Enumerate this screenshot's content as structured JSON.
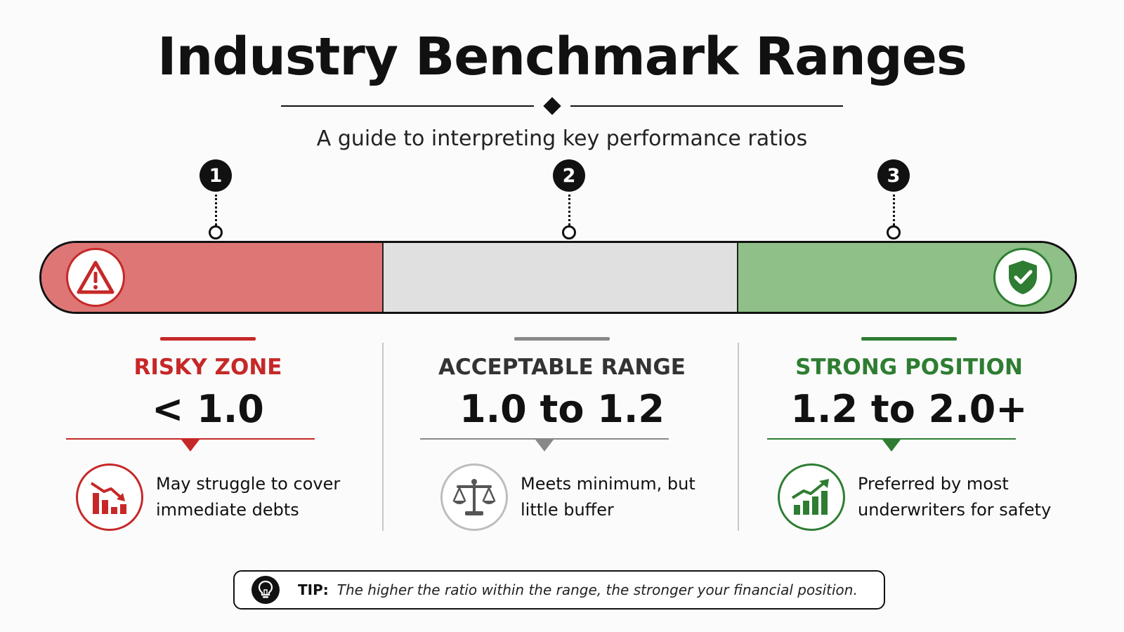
{
  "title": "Industry Benchmark Ranges",
  "subtitle": "A guide to interpreting key performance ratios",
  "markers": [
    "1",
    "2",
    "3"
  ],
  "colors": {
    "risky": "#c62828",
    "risky_fill": "#de7675",
    "acceptable": "#888888",
    "acceptable_fill": "#e0e0e0",
    "strong": "#2e7d32",
    "strong_fill": "#8ec087"
  },
  "bar_icons": [
    "warning-icon",
    "shield-check-icon"
  ],
  "zones": [
    {
      "label": "RISKY ZONE",
      "value": "< 1.0",
      "description": "May struggle to cover immediate debts",
      "icon": "declining-chart-icon"
    },
    {
      "label": "ACCEPTABLE RANGE",
      "value": "1.0 to 1.2",
      "description": "Meets minimum, but little buffer",
      "icon": "scales-icon"
    },
    {
      "label": "STRONG POSITION",
      "value": "1.2 to 2.0+",
      "description": "Preferred by most underwriters for safety",
      "icon": "growth-chart-icon"
    }
  ],
  "tip": {
    "label": "TIP:",
    "text": "The higher the ratio within the range, the stronger your financial position.",
    "icon": "lightbulb-icon"
  }
}
